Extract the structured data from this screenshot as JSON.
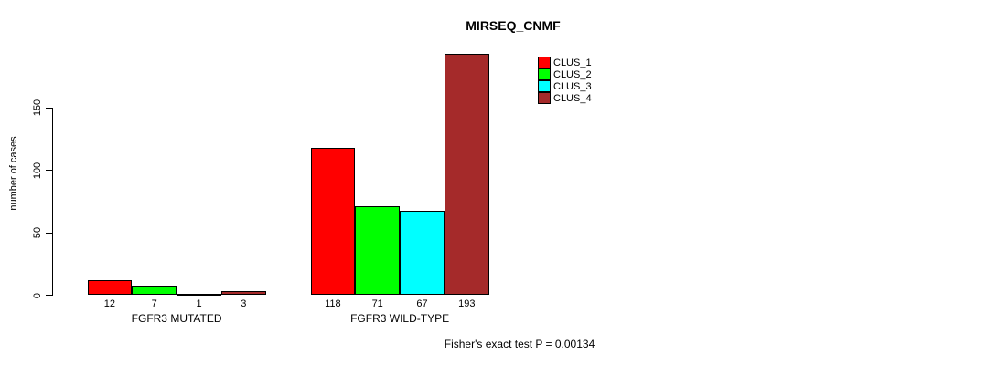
{
  "window": {
    "background_color": "#ffffff",
    "text_color": "#000000"
  },
  "chart_data": {
    "type": "bar",
    "title": "MIRSEQ_CNMF",
    "ylabel": "number of cases",
    "xlabel": "",
    "groups": [
      "FGFR3 MUTATED",
      "FGFR3 WILD-TYPE"
    ],
    "series": [
      {
        "name": "CLUS_1",
        "color": "#ff0000",
        "values": [
          12,
          118
        ]
      },
      {
        "name": "CLUS_2",
        "color": "#00ff00",
        "values": [
          7,
          71
        ]
      },
      {
        "name": "CLUS_3",
        "color": "#00ffff",
        "values": [
          1,
          67
        ]
      },
      {
        "name": "CLUS_4",
        "color": "#a52a2a",
        "values": [
          3,
          193
        ]
      }
    ],
    "bar_value_labels": [
      [
        12,
        7,
        1,
        3
      ],
      [
        118,
        71,
        67,
        193
      ]
    ],
    "yticks": [
      0,
      50,
      100,
      150
    ],
    "ylim": [
      0,
      205
    ],
    "grid": false,
    "legend_position": "top-right",
    "legend_entries": [
      "CLUS_1",
      "CLUS_2",
      "CLUS_3",
      "CLUS_4"
    ],
    "annotation": "Fisher's exact test P = 0.00134"
  }
}
